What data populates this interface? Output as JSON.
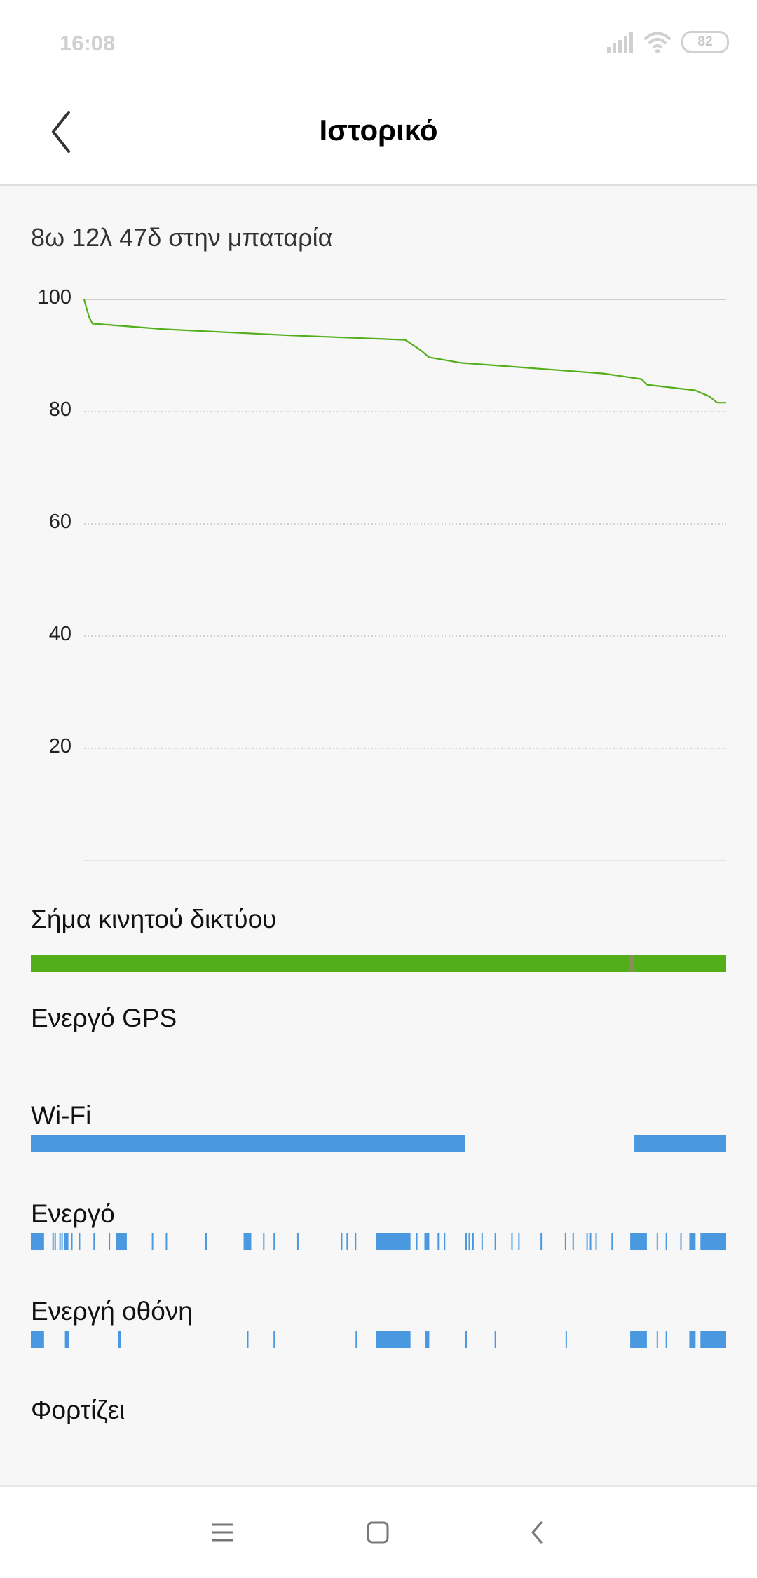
{
  "status_bar": {
    "time": "16:08",
    "battery": "82",
    "icons": [
      "signal-icon",
      "wifi-icon",
      "battery-icon"
    ]
  },
  "header": {
    "title": "Ιστορικό",
    "back_icon": "chevron-left-icon"
  },
  "summary": "8ω 12λ 47δ στην μπαταρία",
  "colors": {
    "line": "#52af1a",
    "mobile": "#52af1a",
    "mobile_marker": "#8b8b5c",
    "bars": "#4a99e0",
    "grid": "#cccccc"
  },
  "chart_data": [
    {
      "type": "line",
      "yticks": [
        "100",
        "80",
        "60",
        "40",
        "20"
      ],
      "ylim": [
        0,
        100
      ],
      "xlim": [
        0,
        1
      ],
      "grid": true,
      "series": [
        {
          "x": [
            0,
            0.003,
            0.008,
            0.013,
            0.125,
            0.32,
            0.5,
            0.525,
            0.537,
            0.587,
            0.809,
            0.868,
            0.877,
            0.952,
            0.974,
            0.986,
            1
          ],
          "y": [
            100,
            98.75,
            96.8,
            95.7,
            94.7,
            93.6,
            92.8,
            90.9,
            89.7,
            88.7,
            86.8,
            85.8,
            84.8,
            83.8,
            82.7,
            81.6,
            81.6
          ]
        }
      ]
    },
    {
      "type": "timeline",
      "rows": [
        {
          "label": "Σήμα κινητού δικτύου",
          "color": "#52af1a",
          "segments": [
            [
              0,
              1
            ]
          ],
          "markers": [
            [
              0.86,
              0.867
            ]
          ]
        },
        {
          "label": "Ενεργό GPS",
          "color": "#4a99e0",
          "segments": []
        },
        {
          "label": "Wi-Fi",
          "color": "#4a99e0",
          "segments": [
            [
              0,
              0.624
            ],
            [
              0.868,
              1
            ]
          ]
        },
        {
          "label": "Ενεργό",
          "color": "#4a99e0",
          "segments": [
            [
              0,
              0.019
            ],
            [
              0.031,
              0.033
            ],
            [
              0.034,
              0.036
            ],
            [
              0.041,
              0.043
            ],
            [
              0.044,
              0.046
            ],
            [
              0.048,
              0.054
            ],
            [
              0.058,
              0.06
            ],
            [
              0.069,
              0.071
            ],
            [
              0.09,
              0.092
            ],
            [
              0.112,
              0.114
            ],
            [
              0.123,
              0.138
            ],
            [
              0.174,
              0.176
            ],
            [
              0.194,
              0.196
            ],
            [
              0.251,
              0.253
            ],
            [
              0.306,
              0.317
            ],
            [
              0.334,
              0.336
            ],
            [
              0.349,
              0.351
            ],
            [
              0.383,
              0.385
            ],
            [
              0.446,
              0.448
            ],
            [
              0.454,
              0.456
            ],
            [
              0.466,
              0.468
            ],
            [
              0.496,
              0.546
            ],
            [
              0.554,
              0.556
            ],
            [
              0.566,
              0.573
            ],
            [
              0.585,
              0.588
            ],
            [
              0.594,
              0.596
            ],
            [
              0.625,
              0.627
            ],
            [
              0.628,
              0.629
            ],
            [
              0.63,
              0.632
            ],
            [
              0.635,
              0.637
            ],
            [
              0.648,
              0.65
            ],
            [
              0.667,
              0.669
            ],
            [
              0.691,
              0.693
            ],
            [
              0.701,
              0.703
            ],
            [
              0.733,
              0.735
            ],
            [
              0.768,
              0.77
            ],
            [
              0.779,
              0.781
            ],
            [
              0.799,
              0.801
            ],
            [
              0.804,
              0.806
            ],
            [
              0.812,
              0.814
            ],
            [
              0.835,
              0.837
            ],
            [
              0.862,
              0.886
            ],
            [
              0.9,
              0.902
            ],
            [
              0.913,
              0.915
            ],
            [
              0.934,
              0.936
            ],
            [
              0.947,
              0.956
            ],
            [
              0.963,
              1
            ]
          ]
        },
        {
          "label": "Ενεργή οθόνη",
          "color": "#4a99e0",
          "segments": [
            [
              0,
              0.019
            ],
            [
              0.049,
              0.055
            ],
            [
              0.125,
              0.13
            ],
            [
              0.311,
              0.313
            ],
            [
              0.349,
              0.351
            ],
            [
              0.467,
              0.469
            ],
            [
              0.496,
              0.546
            ],
            [
              0.567,
              0.573
            ],
            [
              0.625,
              0.627
            ],
            [
              0.667,
              0.669
            ],
            [
              0.769,
              0.771
            ],
            [
              0.862,
              0.886
            ],
            [
              0.9,
              0.902
            ],
            [
              0.913,
              0.915
            ],
            [
              0.947,
              0.956
            ],
            [
              0.963,
              1
            ]
          ]
        },
        {
          "label": "Φορτίζει",
          "color": "#4a99e0",
          "segments": []
        }
      ]
    }
  ],
  "navbar": {
    "icons": [
      "menu-icon",
      "home-square-icon",
      "back-icon"
    ]
  }
}
